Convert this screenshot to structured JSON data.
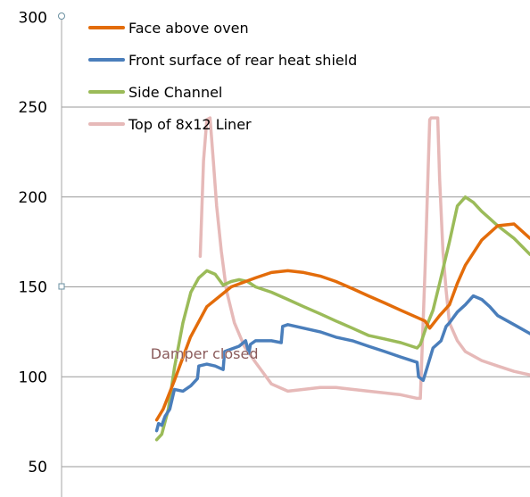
{
  "chart_data": {
    "type": "line",
    "title": "",
    "xlabel": "",
    "ylabel": "",
    "ylim": [
      45,
      300
    ],
    "y_ticks": [
      50,
      100,
      150,
      200,
      250,
      300
    ],
    "xlim": [
      0,
      100
    ],
    "grid": true,
    "legend_position": "top-left",
    "annotation": {
      "text": "Damper closed",
      "x": 19,
      "y": 113
    },
    "series": [
      {
        "name": "Face above oven",
        "color": "#E36C0A",
        "x": [
          20.3,
          21.7,
          24.1,
          27.5,
          31.0,
          36.2,
          41.4,
          44.8,
          48.3,
          51.7,
          55.2,
          58.6,
          62.1,
          65.5,
          69.0,
          72.4,
          75.9,
          77.6,
          78.6,
          80.7,
          82.8,
          84.5,
          86.2,
          89.7,
          93.1,
          96.6,
          100.0
        ],
        "y": [
          76,
          82,
          98,
          122,
          139,
          150,
          155,
          158,
          159,
          158,
          156,
          153,
          149,
          145,
          141,
          137,
          133,
          131,
          127,
          134,
          140,
          152,
          162,
          176,
          184,
          185,
          177
        ]
      },
      {
        "name": "Front surface of rear heat shield",
        "color": "#4A7EBB",
        "x": [
          20.3,
          20.7,
          21.4,
          22.1,
          23.1,
          24.1,
          25.9,
          27.6,
          29.0,
          29.3,
          31.0,
          32.8,
          34.5,
          34.8,
          37.9,
          39.3,
          40.0,
          40.3,
          41.4,
          44.8,
          46.9,
          47.2,
          48.3,
          51.7,
          55.2,
          58.6,
          62.1,
          65.5,
          69.0,
          72.4,
          75.9,
          76.2,
          77.2,
          77.9,
          79.3,
          81.0,
          82.1,
          82.8,
          84.5,
          86.2,
          87.9,
          89.7,
          91.4,
          93.1,
          96.6,
          100.0
        ],
        "y": [
          70,
          74,
          73,
          78,
          82,
          93,
          92,
          95,
          99,
          106,
          107,
          106,
          104,
          114,
          117,
          120,
          113,
          118,
          120,
          120,
          119,
          128,
          129,
          127,
          125,
          122,
          120,
          117,
          114,
          111,
          108,
          100,
          98,
          104,
          116,
          120,
          128,
          130,
          136,
          140,
          145,
          143,
          139,
          134,
          129,
          124
        ]
      },
      {
        "name": "Side Channel",
        "color": "#9BBB59",
        "x": [
          20.3,
          21.4,
          22.8,
          24.1,
          25.9,
          27.6,
          29.3,
          31.0,
          32.8,
          34.5,
          36.2,
          37.9,
          39.7,
          41.4,
          44.8,
          48.3,
          51.7,
          55.2,
          58.6,
          62.1,
          65.5,
          69.0,
          72.4,
          75.9,
          76.6,
          77.9,
          79.3,
          80.7,
          82.8,
          84.5,
          86.2,
          87.9,
          89.7,
          91.4,
          93.1,
          96.6,
          100.0
        ],
        "y": [
          65,
          68,
          82,
          105,
          130,
          147,
          155,
          159,
          157,
          151,
          153,
          154,
          153,
          150,
          147,
          143,
          139,
          135,
          131,
          127,
          123,
          121,
          119,
          116,
          118,
          128,
          137,
          152,
          175,
          195,
          200,
          197,
          192,
          188,
          184,
          177,
          168
        ]
      },
      {
        "name": "Top of 8x12 Liner",
        "color": "#E6B9B8",
        "x": [
          29.6,
          30.3,
          31.0,
          31.7,
          32.4,
          33.1,
          34.1,
          35.2,
          36.9,
          39.0,
          41.4,
          44.8,
          48.3,
          51.7,
          55.2,
          58.6,
          62.1,
          65.5,
          69.0,
          72.4,
          75.9,
          76.6,
          77.6,
          78.6,
          78.9,
          79.7,
          80.3,
          80.7,
          81.4,
          82.1,
          82.8,
          84.5,
          86.2,
          89.7,
          93.1,
          96.6,
          100.0
        ],
        "y": [
          167,
          220,
          243,
          244,
          220,
          195,
          170,
          148,
          130,
          117,
          108,
          96,
          92,
          93,
          94,
          94,
          93,
          92,
          91,
          90,
          88,
          88,
          160,
          243,
          244,
          244,
          244,
          210,
          170,
          148,
          130,
          120,
          114,
          109,
          106,
          103,
          101
        ]
      }
    ]
  }
}
